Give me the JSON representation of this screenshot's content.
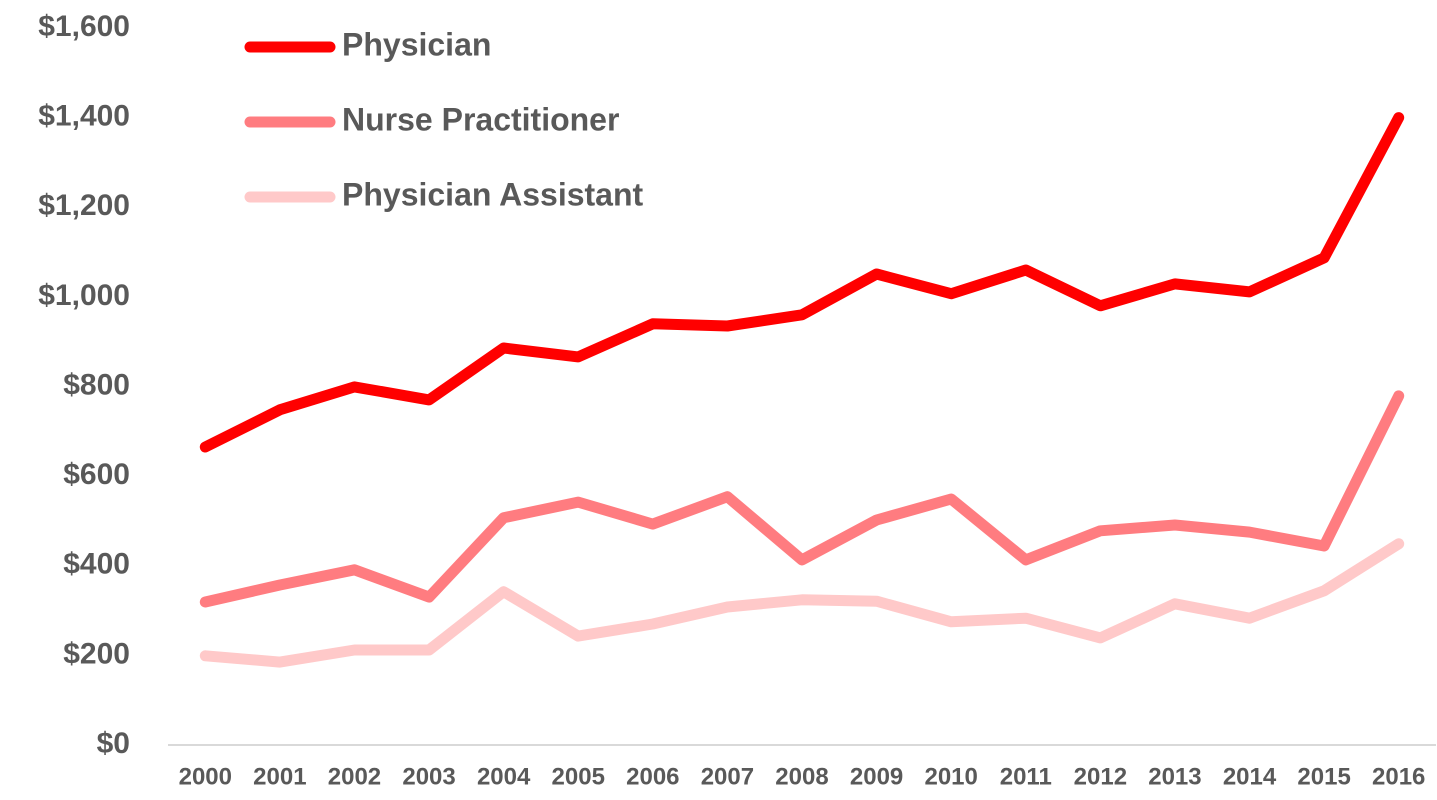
{
  "chart_data": {
    "type": "line",
    "categories": [
      "2000",
      "2001",
      "2002",
      "2003",
      "2004",
      "2005",
      "2006",
      "2007",
      "2008",
      "2009",
      "2010",
      "2011",
      "2012",
      "2013",
      "2014",
      "2015",
      "2016"
    ],
    "series": [
      {
        "name": "Physician",
        "color": "#ff0000",
        "values": [
          665,
          748,
          799,
          770,
          886,
          866,
          940,
          935,
          960,
          1051,
          1007,
          1060,
          980,
          1029,
          1011,
          1087,
          1400
        ]
      },
      {
        "name": "Nurse Practitioner",
        "color": "#ff7c80",
        "values": [
          319,
          357,
          391,
          330,
          507,
          542,
          493,
          554,
          413,
          502,
          549,
          413,
          478,
          491,
          475,
          444,
          779
        ]
      },
      {
        "name": "Physician Assistant",
        "color": "#ffc9c9",
        "values": [
          199,
          185,
          212,
          212,
          342,
          243,
          270,
          308,
          324,
          321,
          275,
          283,
          239,
          315,
          283,
          344,
          449
        ]
      }
    ],
    "ylim": [
      0,
      1600
    ],
    "yticks": [
      {
        "value": 0,
        "label": "$0"
      },
      {
        "value": 200,
        "label": "$200"
      },
      {
        "value": 400,
        "label": "$400"
      },
      {
        "value": 600,
        "label": "$600"
      },
      {
        "value": 800,
        "label": "$800"
      },
      {
        "value": 1000,
        "label": "$1,000"
      },
      {
        "value": 1200,
        "label": "$1,200"
      },
      {
        "value": 1400,
        "label": "$1,400"
      },
      {
        "value": 1600,
        "label": "$1,600"
      }
    ],
    "grid": false,
    "legend": "top-left"
  }
}
